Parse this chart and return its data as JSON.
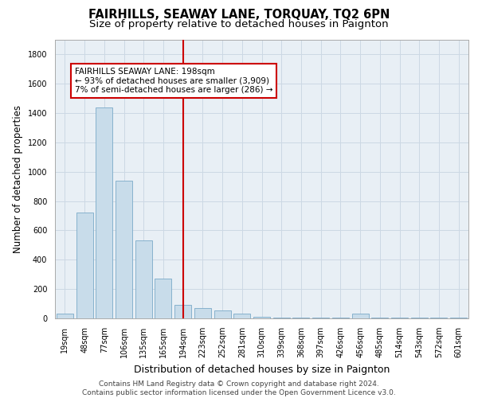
{
  "title": "FAIRHILLS, SEAWAY LANE, TORQUAY, TQ2 6PN",
  "subtitle": "Size of property relative to detached houses in Paignton",
  "xlabel": "Distribution of detached houses by size in Paignton",
  "ylabel": "Number of detached properties",
  "categories": [
    "19sqm",
    "48sqm",
    "77sqm",
    "106sqm",
    "135sqm",
    "165sqm",
    "194sqm",
    "223sqm",
    "252sqm",
    "281sqm",
    "310sqm",
    "339sqm",
    "368sqm",
    "397sqm",
    "426sqm",
    "456sqm",
    "485sqm",
    "514sqm",
    "543sqm",
    "572sqm",
    "601sqm"
  ],
  "values": [
    30,
    720,
    1440,
    940,
    530,
    270,
    95,
    70,
    55,
    35,
    10,
    5,
    5,
    5,
    5,
    30,
    5,
    5,
    5,
    5,
    5
  ],
  "bar_color": "#c8dcea",
  "bar_edge_color": "#7aaac8",
  "grid_color": "#ccd8e4",
  "background_color": "#e8eff5",
  "vline_x_index": 6,
  "vline_color": "#cc0000",
  "annotation_text": "FAIRHILLS SEAWAY LANE: 198sqm\n← 93% of detached houses are smaller (3,909)\n7% of semi-detached houses are larger (286) →",
  "annotation_box_color": "#cc0000",
  "ylim": [
    0,
    1900
  ],
  "yticks": [
    0,
    200,
    400,
    600,
    800,
    1000,
    1200,
    1400,
    1600,
    1800
  ],
  "footer_line1": "Contains HM Land Registry data © Crown copyright and database right 2024.",
  "footer_line2": "Contains public sector information licensed under the Open Government Licence v3.0.",
  "title_fontsize": 10.5,
  "subtitle_fontsize": 9.5,
  "tick_fontsize": 7,
  "ylabel_fontsize": 8.5,
  "xlabel_fontsize": 9,
  "footer_fontsize": 6.5,
  "annotation_fontsize": 7.5
}
